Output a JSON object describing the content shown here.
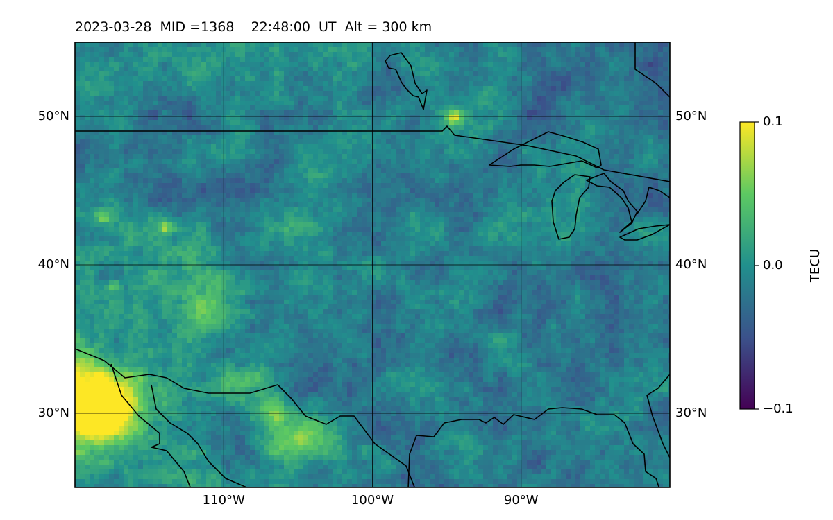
{
  "title": "2023-03-28  MID =1368    22:48:00  UT  Alt = 300 km",
  "map": {
    "lon_range": [
      -120,
      -80
    ],
    "lat_range": [
      25,
      55
    ],
    "lon_ticks": [
      {
        "value": -110,
        "label": "110°W"
      },
      {
        "value": -100,
        "label": "100°W"
      },
      {
        "value": -90,
        "label": "90°W"
      }
    ],
    "lat_ticks": [
      {
        "value": 30,
        "label": "30°N"
      },
      {
        "value": 40,
        "label": "40°N"
      },
      {
        "value": 50,
        "label": "50°N"
      }
    ],
    "gridlines": true,
    "colormap": "viridis"
  },
  "colorbar": {
    "label": "TECU",
    "range": [
      -0.1,
      0.1
    ],
    "ticks": [
      {
        "value": 0.1,
        "label": "0.1"
      },
      {
        "value": 0.0,
        "label": "0.0"
      },
      {
        "value": -0.1,
        "label": "−0.1"
      }
    ],
    "colors": [
      "#440154",
      "#3b528b",
      "#21908d",
      "#5dc962",
      "#fde725"
    ]
  }
}
